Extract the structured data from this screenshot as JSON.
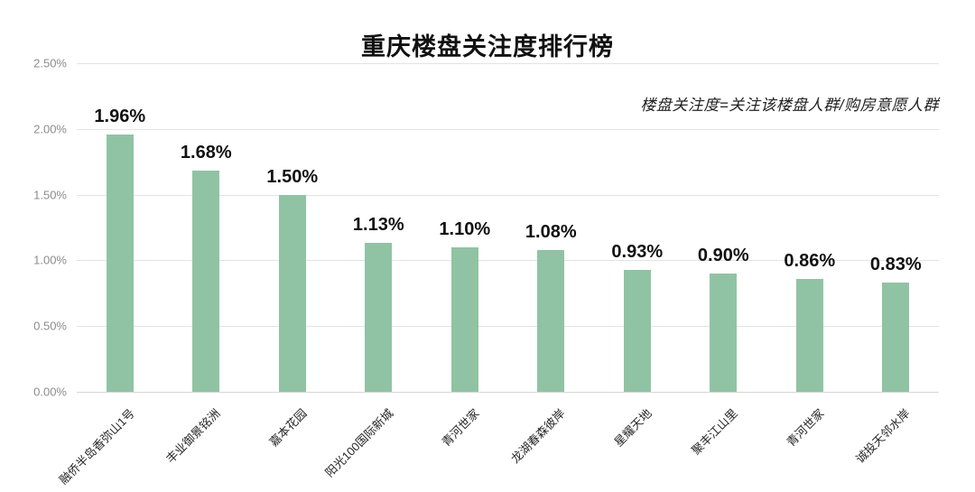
{
  "chart_data": {
    "type": "bar",
    "title": "重庆楼盘关注度排行榜",
    "annotation": "楼盘关注度=关注该楼盘人群/购房意愿人群",
    "categories": [
      "融侨半岛香弥山1号",
      "丰业御景铭洲",
      "嘉本花园",
      "阳光100国际新城",
      "青河世家",
      "龙湖春森彼岸",
      "星耀天地",
      "聚丰江山里",
      "青河世家",
      "诚投天邻水岸"
    ],
    "values": [
      1.96,
      1.68,
      1.5,
      1.13,
      1.1,
      1.08,
      0.93,
      0.9,
      0.86,
      0.83
    ],
    "value_labels": [
      "1.96%",
      "1.68%",
      "1.50%",
      "1.13%",
      "1.10%",
      "1.08%",
      "0.93%",
      "0.90%",
      "0.86%",
      "0.83%"
    ],
    "y_ticks": [
      "2.50%",
      "2.00%",
      "1.50%",
      "1.00%",
      "0.50%",
      "0.00%"
    ],
    "ylim": [
      0,
      2.5
    ],
    "xlabel": "",
    "ylabel": "",
    "grid": true,
    "legend": "none",
    "bar_color": "#90C3A4",
    "grid_color": "#e3e3e3",
    "background_color": "#ffffff"
  }
}
